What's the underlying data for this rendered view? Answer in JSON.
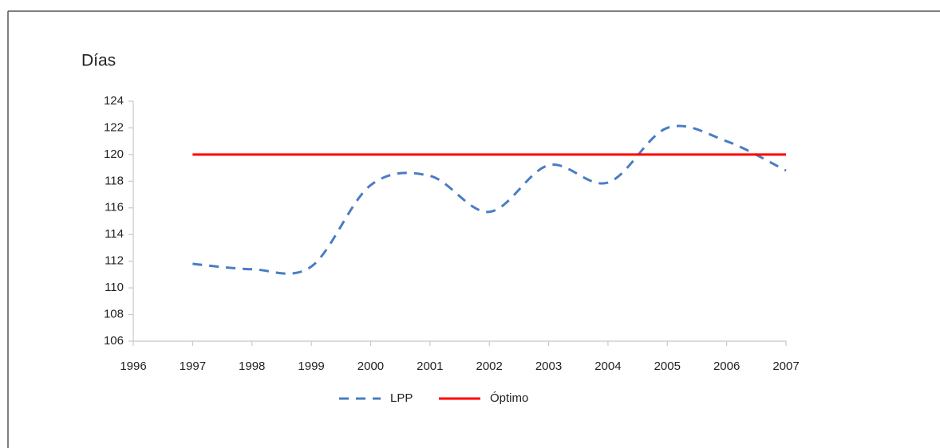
{
  "chart_data": {
    "type": "line",
    "ylabel": "Días",
    "x": [
      1997,
      1998,
      1999,
      2000,
      2001,
      2002,
      2003,
      2004,
      2005,
      2006,
      2007
    ],
    "series": [
      {
        "name": "LPP",
        "color": "#4a7cc4",
        "line_style": "dashed",
        "values": [
          111.8,
          111.4,
          111.6,
          117.7,
          118.4,
          115.7,
          119.2,
          117.9,
          122.0,
          121.0,
          118.8
        ]
      },
      {
        "name": "Óptimo",
        "color": "#ff0000",
        "line_style": "solid",
        "values": [
          120,
          120,
          120,
          120,
          120,
          120,
          120,
          120,
          120,
          120,
          120
        ]
      }
    ],
    "xlim": [
      1996,
      2007
    ],
    "xticks": [
      1996,
      1997,
      1998,
      1999,
      2000,
      2001,
      2002,
      2003,
      2004,
      2005,
      2006,
      2007
    ],
    "ylim": [
      106,
      124
    ],
    "yticks": [
      106,
      108,
      110,
      112,
      114,
      116,
      118,
      120,
      122,
      124
    ],
    "smooth": true,
    "grid": false,
    "legend": "bottom"
  }
}
